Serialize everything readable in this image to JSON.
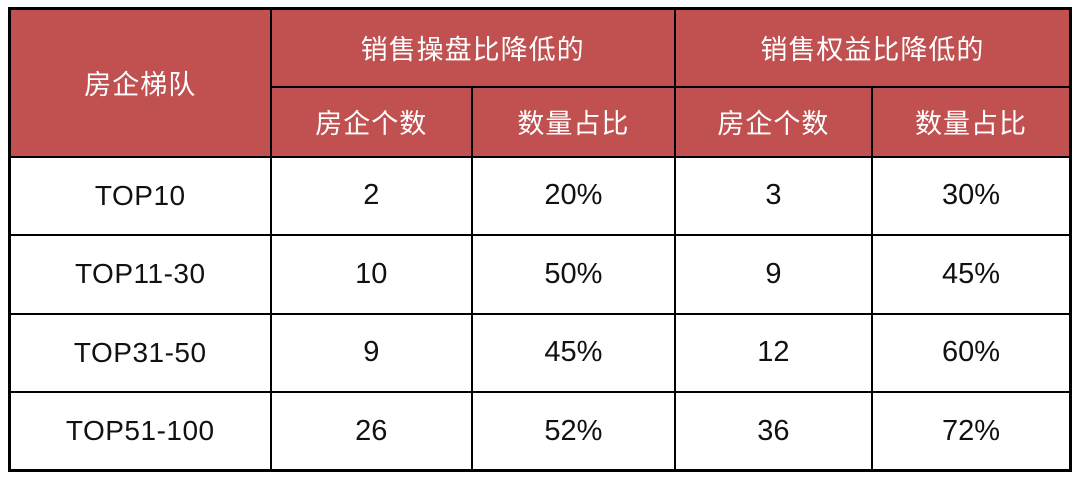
{
  "colors": {
    "header_bg": "#c05150",
    "header_text": "#ffffff",
    "body_text": "#111111",
    "border": "#000000",
    "background": "#ffffff"
  },
  "table": {
    "corner_header": "房企梯队",
    "groups": [
      {
        "label": "销售操盘比降低的",
        "columns": [
          "房企个数",
          "数量占比"
        ]
      },
      {
        "label": "销售权益比降低的",
        "columns": [
          "房企个数",
          "数量占比"
        ]
      }
    ],
    "rows": [
      {
        "tier": "TOP10",
        "values": [
          "2",
          "20%",
          "3",
          "30%"
        ]
      },
      {
        "tier": "TOP11-30",
        "values": [
          "10",
          "50%",
          "9",
          "45%"
        ]
      },
      {
        "tier": "TOP31-50",
        "values": [
          "9",
          "45%",
          "12",
          "60%"
        ]
      },
      {
        "tier": "TOP51-100",
        "values": [
          "26",
          "52%",
          "36",
          "72%"
        ]
      }
    ]
  },
  "chart_data": {
    "type": "table",
    "title": "",
    "columns": [
      "房企梯队",
      "销售操盘比降低的 房企个数",
      "销售操盘比降低的 数量占比",
      "销售权益比降低的 房企个数",
      "销售权益比降低的 数量占比"
    ],
    "rows": [
      [
        "TOP10",
        2,
        "20%",
        3,
        "30%"
      ],
      [
        "TOP11-30",
        10,
        "50%",
        9,
        "45%"
      ],
      [
        "TOP31-50",
        9,
        "45%",
        12,
        "60%"
      ],
      [
        "TOP51-100",
        26,
        "52%",
        36,
        "72%"
      ]
    ]
  }
}
